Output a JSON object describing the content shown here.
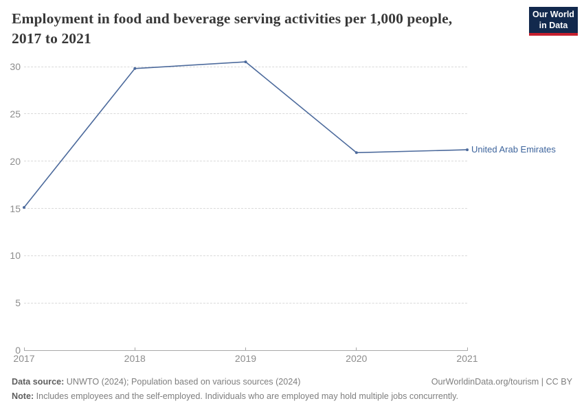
{
  "header": {
    "title_line1": "Employment in food and beverage serving activities per 1,000 people,",
    "title_line2": "2017 to 2021",
    "logo_line1": "Our World",
    "logo_line2": "in Data",
    "logo_bg_color": "#12294d",
    "logo_bar_color": "#c5202e"
  },
  "chart_data": {
    "type": "line",
    "title": "Employment in food and beverage serving activities per 1,000 people, 2017 to 2021",
    "x": [
      2017,
      2018,
      2019,
      2020,
      2021
    ],
    "series": [
      {
        "name": "United Arab Emirates",
        "values": [
          15.1,
          29.8,
          30.5,
          20.9,
          21.2
        ]
      }
    ],
    "xlabel": "",
    "ylabel": "",
    "ylim": [
      0,
      30
    ],
    "yticks": [
      0,
      5,
      10,
      15,
      20,
      25,
      30
    ],
    "grid": "horizontal-dashed",
    "legend": "end-of-line-label",
    "line_color": "#4c6a9c",
    "label_color": "#3d649c"
  },
  "footer": {
    "source_label": "Data source:",
    "source_text": " UNWTO (2024); Population based on various sources (2024)",
    "link_text": "OurWorldinData.org/tourism | CC BY",
    "note_label": "Note:",
    "note_text": " Includes employees and the self-employed. Individuals who are employed may hold multiple jobs concurrently."
  }
}
